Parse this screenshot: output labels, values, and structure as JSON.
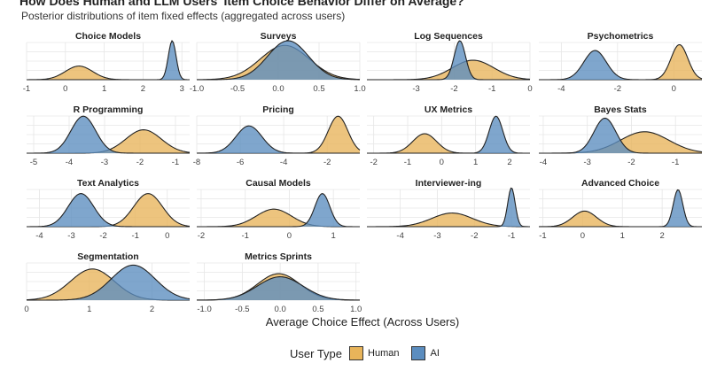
{
  "title": "How Does Human and LLM Users' Item Choice Behavior Differ on Average?",
  "subtitle": "Posterior distributions of item fixed effects (aggregated across users)",
  "colors": {
    "human": "#E8B45A",
    "ai": "#5B8DBF",
    "outline": "#222222",
    "grid": "#e6e6e6"
  },
  "chart_data": {
    "type": "area",
    "xlabel": "Average Choice Effect (Across Users)",
    "legend": {
      "title": "User Type",
      "items": [
        {
          "key": "human",
          "label": "Human"
        },
        {
          "key": "ai",
          "label": "AI"
        }
      ],
      "placement": "bottom"
    },
    "panels": [
      {
        "title": "Choice Models",
        "xlim": [
          -1,
          3.2
        ],
        "ticks": [
          -1,
          0,
          1,
          2,
          3
        ],
        "tick_labels": [
          "-1",
          "0",
          "1",
          "2",
          "3"
        ],
        "human": {
          "mean": 0.35,
          "sd": 0.35,
          "height": 0.35
        },
        "ai": {
          "mean": 2.75,
          "sd": 0.1,
          "height": 1.0
        }
      },
      {
        "title": "Surveys",
        "xlim": [
          -1.0,
          1.0
        ],
        "ticks": [
          -1.0,
          -0.5,
          0.0,
          0.5,
          1.0
        ],
        "tick_labels": [
          "-1.0",
          "-0.5",
          "0.0",
          "0.5",
          "1.0"
        ],
        "human": {
          "mean": 0.08,
          "sd": 0.3,
          "height": 0.88
        },
        "ai": {
          "mean": 0.12,
          "sd": 0.25,
          "height": 1.0
        }
      },
      {
        "title": "Log Sequences",
        "xlim": [
          -4.3,
          0
        ],
        "ticks": [
          -3,
          -2,
          -1,
          0
        ],
        "tick_labels": [
          "-3",
          "-2",
          "-1",
          "0"
        ],
        "human": {
          "mean": -1.5,
          "sd": 0.55,
          "height": 0.5
        },
        "ai": {
          "mean": -1.85,
          "sd": 0.15,
          "height": 1.0
        }
      },
      {
        "title": "Psychometrics",
        "xlim": [
          -4.8,
          1.0
        ],
        "ticks": [
          -4,
          -2,
          0
        ],
        "tick_labels": [
          "-4",
          "-2",
          "0"
        ],
        "human": {
          "mean": 0.2,
          "sd": 0.3,
          "height": 0.9
        },
        "ai": {
          "mean": -2.8,
          "sd": 0.4,
          "height": 0.75
        }
      },
      {
        "title": "R Programming",
        "xlim": [
          -5.2,
          -0.6
        ],
        "ticks": [
          -5,
          -4,
          -3,
          -2,
          -1
        ],
        "tick_labels": [
          "-5",
          "-4",
          "-3",
          "-2",
          "-1"
        ],
        "human": {
          "mean": -1.9,
          "sd": 0.5,
          "height": 0.6
        },
        "ai": {
          "mean": -3.6,
          "sd": 0.35,
          "height": 0.95
        }
      },
      {
        "title": "Pricing",
        "xlim": [
          -8,
          -0.5
        ],
        "ticks": [
          -8,
          -6,
          -4,
          -2
        ],
        "tick_labels": [
          "-8",
          "-6",
          "-4",
          "-2"
        ],
        "human": {
          "mean": -1.5,
          "sd": 0.45,
          "height": 0.95
        },
        "ai": {
          "mean": -5.6,
          "sd": 0.6,
          "height": 0.7
        }
      },
      {
        "title": "UX Metrics",
        "xlim": [
          -2.2,
          2.6
        ],
        "ticks": [
          -2,
          -1,
          0,
          1,
          2
        ],
        "tick_labels": [
          "-2",
          "-1",
          "0",
          "1",
          "2"
        ],
        "human": {
          "mean": -0.5,
          "sd": 0.35,
          "height": 0.5
        },
        "ai": {
          "mean": 1.6,
          "sd": 0.2,
          "height": 0.95
        }
      },
      {
        "title": "Bayes Stats",
        "xlim": [
          -4.1,
          -0.4
        ],
        "ticks": [
          -4,
          -3,
          -2,
          -1
        ],
        "tick_labels": [
          "-4",
          "-3",
          "-2",
          "-1"
        ],
        "human": {
          "mean": -1.7,
          "sd": 0.55,
          "height": 0.55
        },
        "ai": {
          "mean": -2.6,
          "sd": 0.25,
          "height": 0.9
        }
      },
      {
        "title": "Text Analytics",
        "xlim": [
          -4.4,
          0.7
        ],
        "ticks": [
          -4,
          -3,
          -2,
          -1,
          0
        ],
        "tick_labels": [
          "-4",
          "-3",
          "-2",
          "-1",
          "0"
        ],
        "human": {
          "mean": -0.6,
          "sd": 0.45,
          "height": 0.85
        },
        "ai": {
          "mean": -2.7,
          "sd": 0.4,
          "height": 0.85
        }
      },
      {
        "title": "Causal Models",
        "xlim": [
          -2.1,
          1.6
        ],
        "ticks": [
          -2,
          -1,
          0,
          1
        ],
        "tick_labels": [
          "-2",
          "-1",
          "0",
          "1"
        ],
        "human": {
          "mean": -0.35,
          "sd": 0.4,
          "height": 0.45
        },
        "ai": {
          "mean": 0.75,
          "sd": 0.17,
          "height": 0.85
        }
      },
      {
        "title": "Interviewer-ing",
        "xlim": [
          -4.9,
          -0.5
        ],
        "ticks": [
          -4,
          -3,
          -2,
          -1
        ],
        "tick_labels": [
          "-4",
          "-3",
          "-2",
          "-1"
        ],
        "human": {
          "mean": -2.6,
          "sd": 0.55,
          "height": 0.35
        },
        "ai": {
          "mean": -1.0,
          "sd": 0.1,
          "height": 1.0
        }
      },
      {
        "title": "Advanced Choice",
        "xlim": [
          -1.1,
          3.0
        ],
        "ticks": [
          -1,
          0,
          1,
          2
        ],
        "tick_labels": [
          "-1",
          "0",
          "1",
          "2"
        ],
        "human": {
          "mean": 0.05,
          "sd": 0.3,
          "height": 0.4
        },
        "ai": {
          "mean": 2.4,
          "sd": 0.12,
          "height": 0.95
        }
      },
      {
        "title": "Segmentation",
        "xlim": [
          0,
          2.6
        ],
        "ticks": [
          0,
          1,
          2
        ],
        "tick_labels": [
          "0",
          "1",
          "2"
        ],
        "human": {
          "mean": 1.05,
          "sd": 0.35,
          "height": 0.8
        },
        "ai": {
          "mean": 1.7,
          "sd": 0.35,
          "height": 0.9
        }
      },
      {
        "title": "Metrics Sprints",
        "xlim": [
          -1.1,
          1.05
        ],
        "ticks": [
          -1.0,
          -0.5,
          0.0,
          0.5,
          1.0
        ],
        "tick_labels": [
          "-1.0",
          "-0.5",
          "0.0",
          "0.5",
          "1.0"
        ],
        "human": {
          "mean": -0.02,
          "sd": 0.28,
          "height": 0.68
        },
        "ai": {
          "mean": 0.0,
          "sd": 0.3,
          "height": 0.6
        }
      }
    ]
  }
}
